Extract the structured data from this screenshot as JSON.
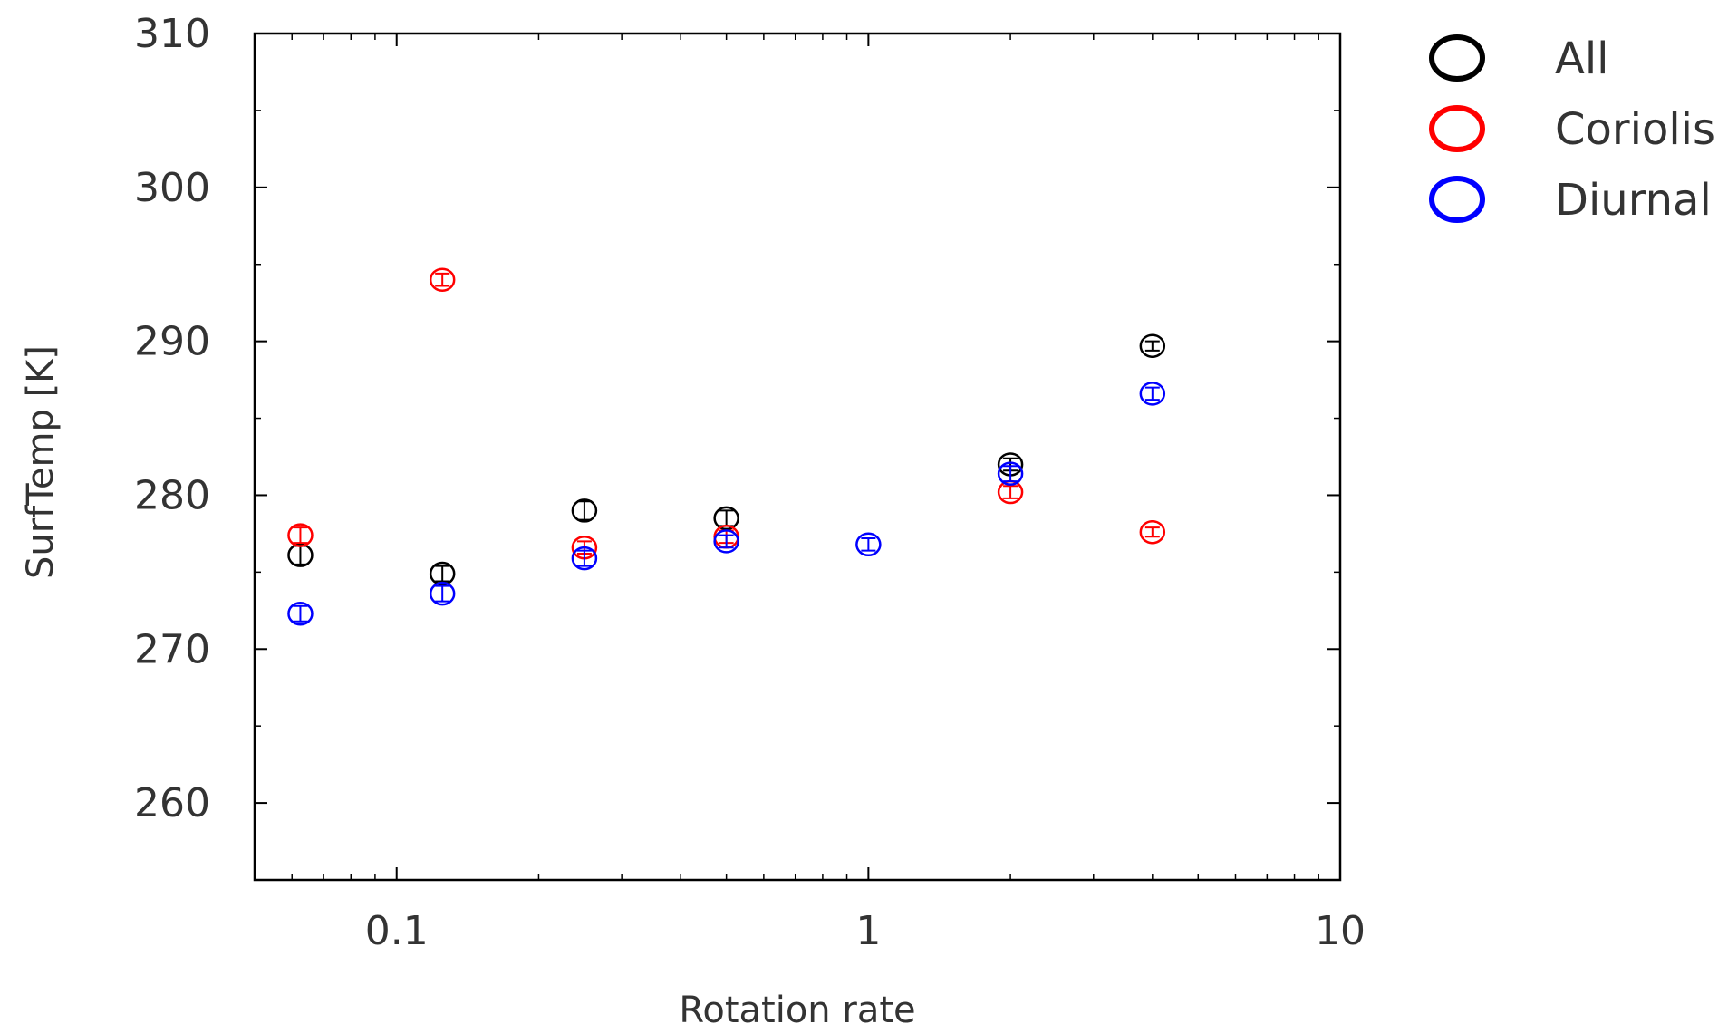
{
  "chart_data": {
    "type": "scatter",
    "xlabel": "Rotation rate",
    "ylabel": "SurfTemp [K]",
    "xscale": "log",
    "xlim": [
      0.05,
      10
    ],
    "ylim": [
      255,
      310
    ],
    "x_ticks": [
      {
        "value": 0.1,
        "label": "0.1"
      },
      {
        "value": 1,
        "label": "1"
      },
      {
        "value": 10,
        "label": "10"
      }
    ],
    "y_ticks": [
      {
        "value": 260,
        "label": "260"
      },
      {
        "value": 270,
        "label": "270"
      },
      {
        "value": 280,
        "label": "280"
      },
      {
        "value": 290,
        "label": "290"
      },
      {
        "value": 300,
        "label": "300"
      },
      {
        "value": 310,
        "label": "310"
      }
    ],
    "grid": false,
    "legend_position": "outside-right",
    "series": [
      {
        "name": "All",
        "color": "#000000",
        "points": [
          {
            "x": 0.0625,
            "y": 276.1,
            "err": 0.6
          },
          {
            "x": 0.125,
            "y": 274.9,
            "err": 0.5
          },
          {
            "x": 0.25,
            "y": 279.0,
            "err": 0.6
          },
          {
            "x": 0.5,
            "y": 278.5,
            "err": 0.5
          },
          {
            "x": 2,
            "y": 282.0,
            "err": 0.4
          },
          {
            "x": 4,
            "y": 289.7,
            "err": 0.3
          }
        ]
      },
      {
        "name": "Coriolis",
        "color": "#ff0000",
        "points": [
          {
            "x": 0.0625,
            "y": 277.4,
            "err": 0.5
          },
          {
            "x": 0.125,
            "y": 294.0,
            "err": 0.4
          },
          {
            "x": 0.25,
            "y": 276.6,
            "err": 0.4
          },
          {
            "x": 0.5,
            "y": 277.3,
            "err": 0.4
          },
          {
            "x": 2,
            "y": 280.2,
            "err": 0.4
          },
          {
            "x": 4,
            "y": 277.6,
            "err": 0.3
          }
        ]
      },
      {
        "name": "Diurnal",
        "color": "#0000ff",
        "points": [
          {
            "x": 0.0625,
            "y": 272.3,
            "err": 0.5
          },
          {
            "x": 0.125,
            "y": 273.6,
            "err": 0.5
          },
          {
            "x": 0.25,
            "y": 275.9,
            "err": 0.5
          },
          {
            "x": 0.5,
            "y": 277.0,
            "err": 0.4
          },
          {
            "x": 1,
            "y": 276.8,
            "err": 0.4
          },
          {
            "x": 2,
            "y": 281.4,
            "err": 0.5
          },
          {
            "x": 4,
            "y": 286.6,
            "err": 0.4
          }
        ]
      }
    ]
  }
}
